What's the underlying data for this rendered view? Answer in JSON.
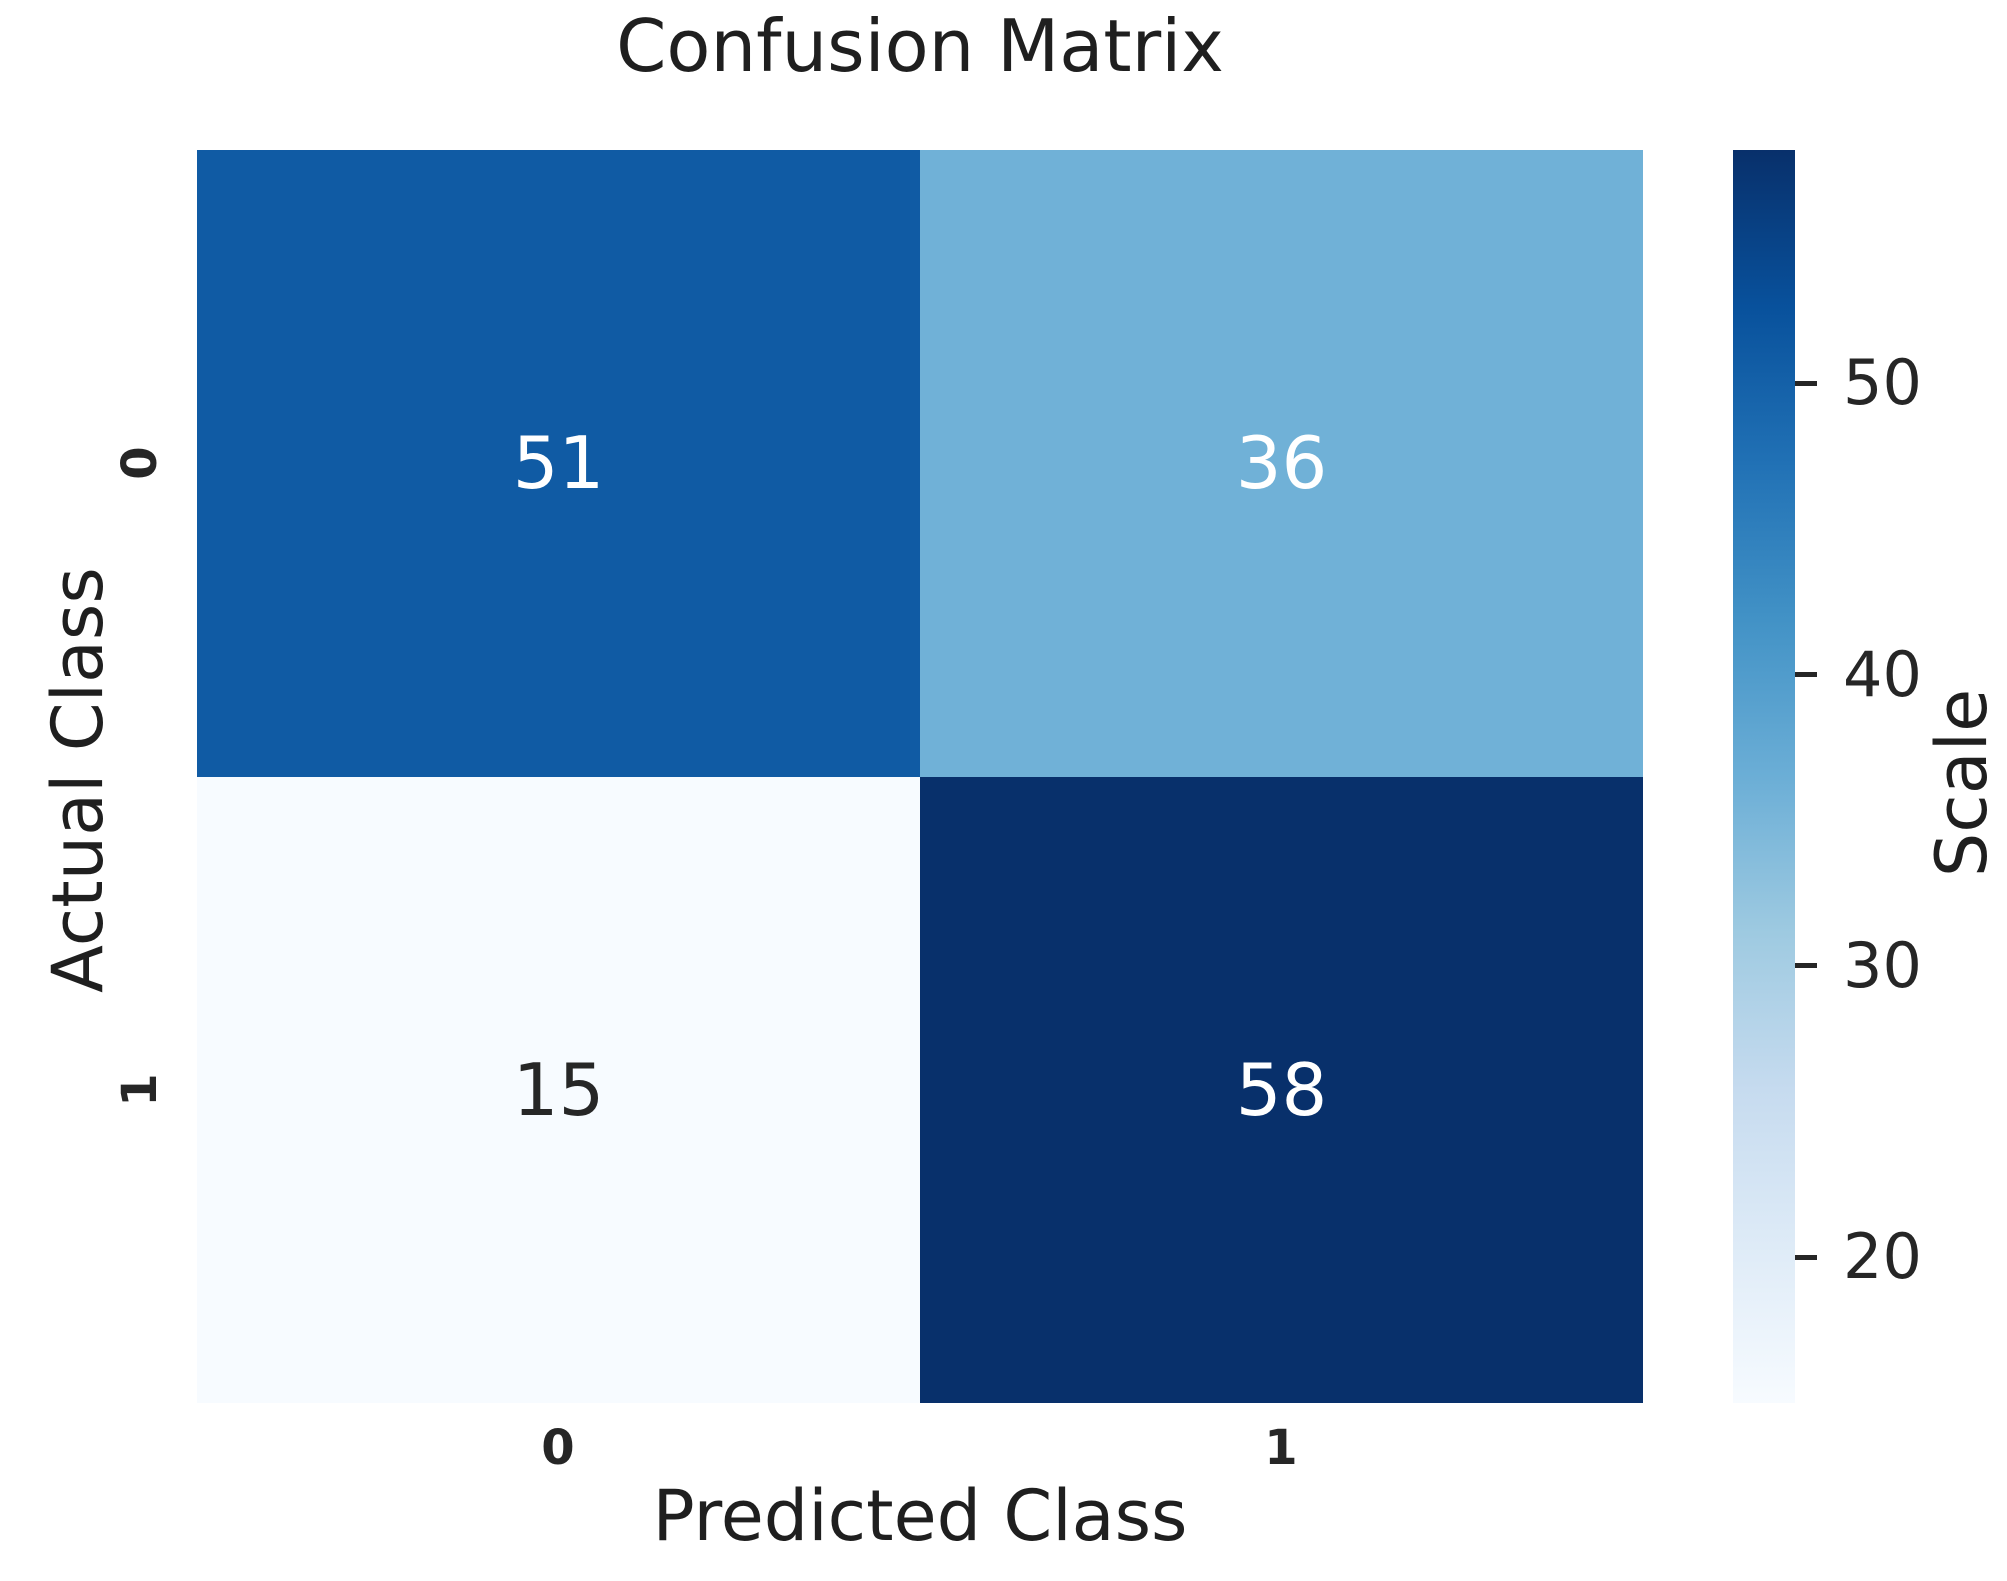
{
  "chart_data": {
    "type": "heatmap",
    "title": "Confusion Matrix",
    "xlabel": "Predicted Class",
    "ylabel": "Actual Class",
    "x_tick_labels": [
      "0",
      "1"
    ],
    "y_tick_labels": [
      "0",
      "1"
    ],
    "matrix": [
      [
        51,
        36
      ],
      [
        15,
        58
      ]
    ],
    "cells": [
      {
        "row": 0,
        "col": 0,
        "value": "51",
        "color": "#105ba4",
        "text_color": "#ffffff"
      },
      {
        "row": 0,
        "col": 1,
        "value": "36",
        "color": "#70b1d7",
        "text_color": "#ffffff"
      },
      {
        "row": 1,
        "col": 0,
        "value": "15",
        "color": "#f7fbff",
        "text_color": "#262626"
      },
      {
        "row": 1,
        "col": 1,
        "value": "58",
        "color": "#08306b",
        "text_color": "#ffffff"
      }
    ],
    "colorbar": {
      "label": "Scale",
      "vmin": 15,
      "vmax": 58,
      "ticks": [
        50,
        40,
        30,
        20
      ],
      "colormap_name": "Blues",
      "gradient_stops_bottom_to_top": [
        "#f7fbff",
        "#deebf7",
        "#c6dbef",
        "#9ecae1",
        "#6baed6",
        "#4292c6",
        "#2171b5",
        "#08519c",
        "#08306b"
      ]
    },
    "grid": false,
    "text_color": "#262626",
    "background_color": "#ffffff"
  }
}
